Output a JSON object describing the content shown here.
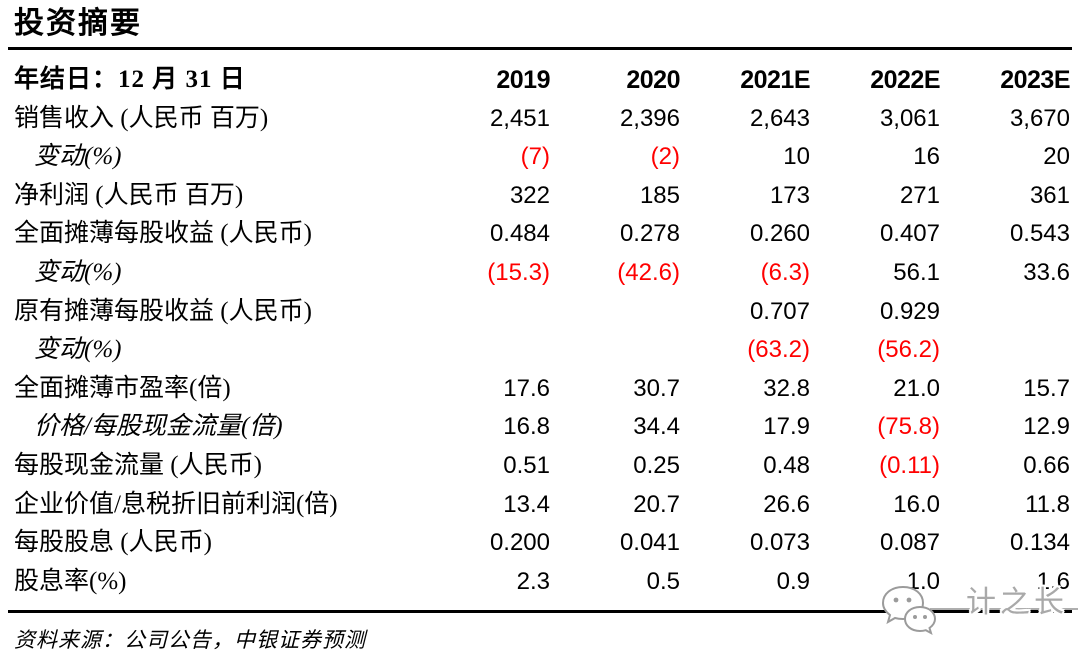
{
  "title": "投资摘要",
  "colors": {
    "text": "#000000",
    "negative": "#ff0000",
    "rule": "#000000",
    "watermark_gray": "#a9a9a9"
  },
  "table": {
    "header": {
      "label": "年结日：12 月 31 日",
      "columns": [
        "2019",
        "2020",
        "2021E",
        "2022E",
        "2023E"
      ]
    },
    "rows": [
      {
        "label": "销售收入 (人民币 百万)",
        "sub": false,
        "values": [
          "2,451",
          "2,396",
          "2,643",
          "3,061",
          "3,670"
        ]
      },
      {
        "label": "变动(%)",
        "sub": true,
        "values": [
          "(7)",
          "(2)",
          "10",
          "16",
          "20"
        ]
      },
      {
        "label": "净利润 (人民币 百万)",
        "sub": false,
        "values": [
          "322",
          "185",
          "173",
          "271",
          "361"
        ]
      },
      {
        "label": "全面摊薄每股收益 (人民币)",
        "sub": false,
        "values": [
          "0.484",
          "0.278",
          "0.260",
          "0.407",
          "0.543"
        ]
      },
      {
        "label": "变动(%)",
        "sub": true,
        "values": [
          "(15.3)",
          "(42.6)",
          "(6.3)",
          "56.1",
          "33.6"
        ]
      },
      {
        "label": "原有摊薄每股收益 (人民币)",
        "sub": false,
        "values": [
          "",
          "",
          "0.707",
          "0.929",
          ""
        ]
      },
      {
        "label": "变动(%)",
        "sub": true,
        "values": [
          "",
          "",
          "(63.2)",
          "(56.2)",
          ""
        ]
      },
      {
        "label": "全面摊薄市盈率(倍)",
        "sub": false,
        "values": [
          "17.6",
          "30.7",
          "32.8",
          "21.0",
          "15.7"
        ]
      },
      {
        "label": "价格/每股现金流量(倍)",
        "sub": true,
        "values": [
          "16.8",
          "34.4",
          "17.9",
          "(75.8)",
          "12.9"
        ]
      },
      {
        "label": "每股现金流量 (人民币)",
        "sub": false,
        "values": [
          "0.51",
          "0.25",
          "0.48",
          "(0.11)",
          "0.66"
        ]
      },
      {
        "label": "企业价值/息税折旧前利润(倍)",
        "sub": false,
        "values": [
          "13.4",
          "20.7",
          "26.6",
          "16.0",
          "11.8"
        ]
      },
      {
        "label": "每股股息 (人民币)",
        "sub": false,
        "values": [
          "0.200",
          "0.041",
          "0.073",
          "0.087",
          "0.134"
        ]
      },
      {
        "label": "股息率(%)",
        "sub": false,
        "values": [
          "2.3",
          "0.5",
          "0.9",
          "1.0",
          "1.6"
        ]
      }
    ]
  },
  "footer": {
    "source": "资料来源：公司公告，中银证券预测"
  },
  "watermark": {
    "text": "计之长",
    "icon": "wechat-icon"
  }
}
